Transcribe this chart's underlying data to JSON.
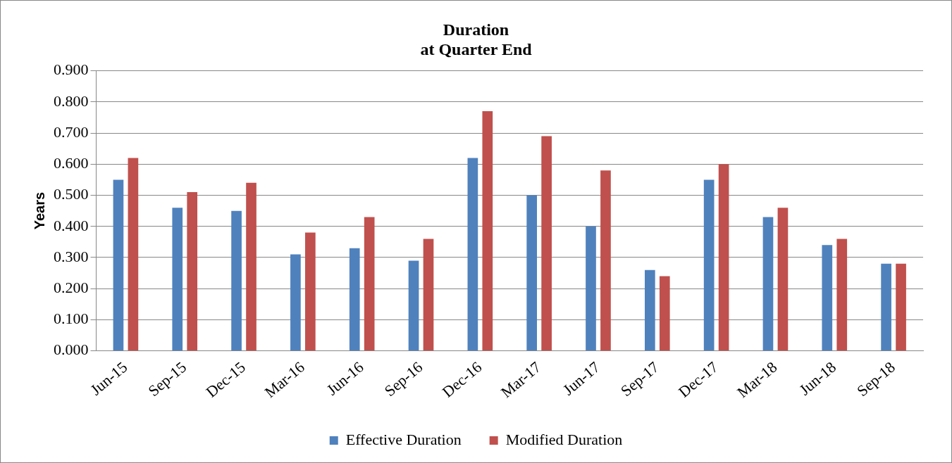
{
  "chart_data": {
    "type": "bar",
    "title": "Duration\nat Quarter End",
    "ylabel": "Years",
    "categories": [
      "Jun-15",
      "Sep-15",
      "Dec-15",
      "Mar-16",
      "Jun-16",
      "Sep-16",
      "Dec-16",
      "Mar-17",
      "Jun-17",
      "Sep-17",
      "Dec-17",
      "Mar-18",
      "Jun-18",
      "Sep-18"
    ],
    "series": [
      {
        "name": "Effective Duration",
        "color": "#4f81bd",
        "values": [
          0.55,
          0.46,
          0.45,
          0.31,
          0.33,
          0.29,
          0.62,
          0.5,
          0.4,
          0.26,
          0.55,
          0.43,
          0.34,
          0.28
        ]
      },
      {
        "name": "Modified Duration",
        "color": "#c0504d",
        "values": [
          0.62,
          0.51,
          0.54,
          0.38,
          0.43,
          0.36,
          0.77,
          0.69,
          0.58,
          0.24,
          0.6,
          0.46,
          0.36,
          0.28
        ]
      }
    ],
    "ylim": [
      0,
      0.9
    ],
    "yticks": [
      {
        "value": 0,
        "label": "0.000"
      },
      {
        "value": 0.1,
        "label": "0.100"
      },
      {
        "value": 0.2,
        "label": "0.200"
      },
      {
        "value": 0.3,
        "label": "0.300"
      },
      {
        "value": 0.4,
        "label": "0.400"
      },
      {
        "value": 0.5,
        "label": "0.500"
      },
      {
        "value": 0.6,
        "label": "0.600"
      },
      {
        "value": 0.7,
        "label": "0.700"
      },
      {
        "value": 0.8,
        "label": "0.800"
      },
      {
        "value": 0.9,
        "label": "0.900"
      }
    ],
    "grid": "y",
    "legend": "bottom"
  }
}
